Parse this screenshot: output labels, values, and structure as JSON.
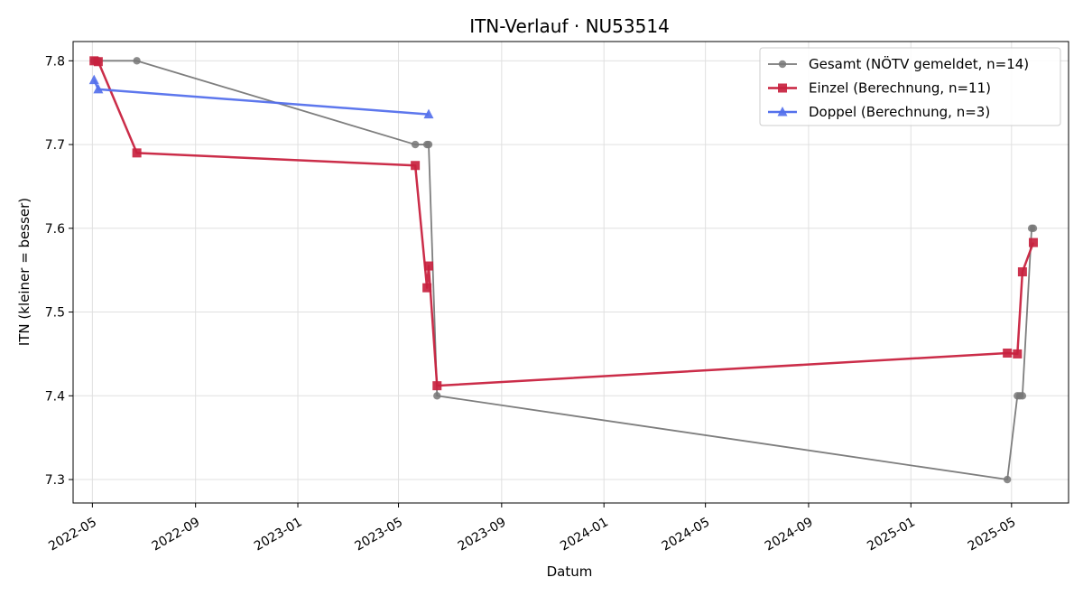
{
  "chart_data": {
    "type": "line",
    "title": "ITN-Verlauf · NU53514",
    "xlabel": "Datum",
    "ylabel": "ITN  (kleiner = besser)",
    "x_type": "date",
    "xlim": [
      "2022-04-08",
      "2025-07-08"
    ],
    "ylim": [
      7.272,
      7.823
    ],
    "x_ticks": [
      "2022-05",
      "2022-09",
      "2023-01",
      "2023-05",
      "2023-09",
      "2024-01",
      "2024-05",
      "2024-09",
      "2025-01",
      "2025-05"
    ],
    "y_ticks": [
      7.3,
      7.4,
      7.5,
      7.6,
      7.7,
      7.8
    ],
    "grid": true,
    "legend_position": "top-right",
    "series": [
      {
        "name": "Gesamt (NÖTV gemeldet, n=14)",
        "color": "#777777",
        "marker": "circle",
        "points": [
          {
            "x": "2022-05-03",
            "y": 7.8
          },
          {
            "x": "2022-05-06",
            "y": 7.8
          },
          {
            "x": "2022-05-08",
            "y": 7.8
          },
          {
            "x": "2022-06-23",
            "y": 7.8
          },
          {
            "x": "2023-05-21",
            "y": 7.7
          },
          {
            "x": "2023-06-04",
            "y": 7.7
          },
          {
            "x": "2023-06-06",
            "y": 7.7
          },
          {
            "x": "2023-06-16",
            "y": 7.4
          },
          {
            "x": "2025-04-26",
            "y": 7.3
          },
          {
            "x": "2025-05-08",
            "y": 7.4
          },
          {
            "x": "2025-05-11",
            "y": 7.4
          },
          {
            "x": "2025-05-14",
            "y": 7.4
          },
          {
            "x": "2025-05-25",
            "y": 7.6
          },
          {
            "x": "2025-05-27",
            "y": 7.6
          }
        ]
      },
      {
        "name": "Einzel (Berechnung, n=11)",
        "color": "#c8223f",
        "marker": "square",
        "points": [
          {
            "x": "2022-05-03",
            "y": 7.8
          },
          {
            "x": "2022-05-08",
            "y": 7.799
          },
          {
            "x": "2022-06-23",
            "y": 7.69
          },
          {
            "x": "2023-05-21",
            "y": 7.675
          },
          {
            "x": "2023-06-04",
            "y": 7.529
          },
          {
            "x": "2023-06-06",
            "y": 7.555
          },
          {
            "x": "2023-06-16",
            "y": 7.412
          },
          {
            "x": "2025-04-26",
            "y": 7.451
          },
          {
            "x": "2025-05-08",
            "y": 7.45
          },
          {
            "x": "2025-05-14",
            "y": 7.548
          },
          {
            "x": "2025-05-27",
            "y": 7.583
          }
        ]
      },
      {
        "name": "Doppel (Berechnung, n=3)",
        "color": "#5470ec",
        "marker": "triangle",
        "points": [
          {
            "x": "2022-05-03",
            "y": 7.777
          },
          {
            "x": "2022-05-08",
            "y": 7.766
          },
          {
            "x": "2023-06-06",
            "y": 7.736
          }
        ]
      }
    ]
  }
}
